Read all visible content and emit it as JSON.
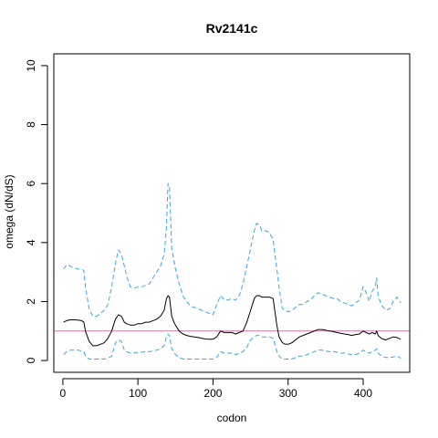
{
  "chart_data": {
    "type": "line",
    "title": "Rv2141c",
    "xlabel": "codon",
    "ylabel": "omega (dN/dS)",
    "xlim": [
      -12,
      462
    ],
    "ylim": [
      -0.4,
      10.4
    ],
    "x_ticks": [
      0,
      100,
      200,
      300,
      400
    ],
    "y_ticks": [
      0,
      2,
      4,
      6,
      8,
      10
    ],
    "x_tick_labels": [
      "0",
      "100",
      "200",
      "300",
      "400"
    ],
    "y_tick_labels": [
      "0",
      "2",
      "4",
      "6",
      "8",
      "10"
    ],
    "grid": false,
    "legend": "none",
    "reference_line": {
      "y": 1,
      "color": "#cc79a7"
    },
    "series": [
      {
        "role": "upper",
        "style": "dashed",
        "color": "#3aa6dc",
        "x": [
          1,
          5,
          10,
          15,
          20,
          25,
          28,
          30,
          35,
          40,
          45,
          50,
          55,
          60,
          65,
          70,
          74,
          78,
          82,
          85,
          90,
          95,
          100,
          105,
          110,
          115,
          120,
          125,
          130,
          135,
          138,
          140,
          142,
          145,
          148,
          150,
          155,
          160,
          165,
          170,
          175,
          180,
          185,
          190,
          195,
          200,
          205,
          210,
          215,
          220,
          225,
          230,
          235,
          240,
          245,
          250,
          255,
          258,
          262,
          265,
          270,
          275,
          280,
          285,
          288,
          292,
          295,
          300,
          305,
          310,
          315,
          320,
          325,
          330,
          335,
          340,
          345,
          350,
          355,
          360,
          365,
          370,
          375,
          380,
          385,
          390,
          395,
          400,
          404,
          408,
          412,
          416,
          418,
          420,
          424,
          430,
          435,
          440,
          445,
          450
        ],
        "values": [
          3.1,
          3.25,
          3.2,
          3.15,
          3.1,
          3.1,
          3.05,
          2.5,
          1.75,
          1.5,
          1.5,
          1.6,
          1.7,
          1.9,
          2.5,
          3.3,
          3.75,
          3.6,
          3.2,
          2.85,
          2.5,
          2.45,
          2.5,
          2.5,
          2.55,
          2.6,
          2.8,
          3.0,
          3.2,
          3.6,
          4.5,
          6.0,
          5.9,
          3.8,
          3.4,
          3.1,
          2.6,
          2.2,
          2.0,
          1.85,
          1.8,
          1.75,
          1.7,
          1.65,
          1.6,
          1.55,
          1.9,
          2.2,
          2.05,
          2.05,
          2.1,
          2.05,
          2.2,
          2.6,
          3.2,
          3.8,
          4.4,
          4.65,
          4.6,
          4.4,
          4.4,
          4.35,
          4.1,
          3.1,
          2.5,
          1.8,
          1.7,
          1.65,
          1.7,
          1.8,
          1.9,
          1.9,
          2.0,
          2.05,
          2.2,
          2.3,
          2.25,
          2.2,
          2.15,
          2.1,
          2.1,
          2.0,
          1.95,
          1.9,
          1.85,
          1.95,
          2.05,
          2.5,
          2.3,
          2.0,
          2.35,
          2.5,
          2.8,
          2.2,
          1.9,
          1.7,
          1.75,
          2.0,
          2.15,
          1.95
        ]
      },
      {
        "role": "estimate",
        "style": "solid",
        "color": "#000000",
        "x": [
          1,
          5,
          10,
          15,
          20,
          25,
          28,
          30,
          35,
          40,
          45,
          50,
          55,
          60,
          65,
          70,
          74,
          78,
          82,
          85,
          90,
          95,
          100,
          105,
          110,
          115,
          120,
          125,
          130,
          135,
          138,
          140,
          142,
          145,
          148,
          150,
          155,
          160,
          165,
          170,
          175,
          180,
          185,
          190,
          195,
          200,
          205,
          210,
          215,
          220,
          225,
          230,
          235,
          240,
          245,
          250,
          255,
          258,
          262,
          265,
          270,
          275,
          280,
          285,
          288,
          292,
          295,
          300,
          305,
          310,
          315,
          320,
          325,
          330,
          335,
          340,
          345,
          350,
          355,
          360,
          365,
          370,
          375,
          380,
          385,
          390,
          395,
          400,
          404,
          408,
          412,
          416,
          418,
          420,
          424,
          430,
          435,
          440,
          445,
          450
        ],
        "values": [
          1.3,
          1.35,
          1.38,
          1.38,
          1.37,
          1.35,
          1.3,
          1.0,
          0.65,
          0.5,
          0.5,
          0.55,
          0.6,
          0.75,
          1.0,
          1.4,
          1.55,
          1.5,
          1.3,
          1.25,
          1.2,
          1.2,
          1.25,
          1.25,
          1.3,
          1.3,
          1.35,
          1.4,
          1.5,
          1.7,
          2.1,
          2.2,
          2.15,
          1.5,
          1.3,
          1.2,
          1.0,
          0.9,
          0.85,
          0.82,
          0.8,
          0.78,
          0.75,
          0.73,
          0.72,
          0.72,
          0.8,
          1.0,
          0.95,
          0.95,
          0.95,
          0.9,
          0.95,
          1.0,
          1.3,
          1.7,
          2.1,
          2.2,
          2.2,
          2.15,
          2.15,
          2.15,
          2.1,
          1.2,
          0.8,
          0.62,
          0.56,
          0.55,
          0.6,
          0.7,
          0.8,
          0.85,
          0.9,
          0.95,
          1.0,
          1.05,
          1.05,
          1.03,
          1.0,
          0.98,
          0.95,
          0.92,
          0.9,
          0.88,
          0.85,
          0.88,
          0.9,
          1.0,
          0.95,
          0.9,
          0.95,
          0.9,
          1.0,
          0.85,
          0.75,
          0.7,
          0.75,
          0.8,
          0.78,
          0.72
        ]
      },
      {
        "role": "lower",
        "style": "dashed",
        "color": "#3aa6dc",
        "x": [
          1,
          5,
          10,
          15,
          20,
          25,
          28,
          30,
          35,
          40,
          45,
          50,
          55,
          60,
          65,
          70,
          74,
          78,
          82,
          85,
          90,
          95,
          100,
          105,
          110,
          115,
          120,
          125,
          130,
          135,
          138,
          140,
          142,
          145,
          148,
          150,
          155,
          160,
          165,
          170,
          175,
          180,
          185,
          190,
          195,
          200,
          205,
          210,
          215,
          220,
          225,
          230,
          235,
          240,
          245,
          250,
          255,
          258,
          262,
          265,
          270,
          275,
          280,
          285,
          288,
          292,
          295,
          300,
          305,
          310,
          315,
          320,
          325,
          330,
          335,
          340,
          345,
          350,
          355,
          360,
          365,
          370,
          375,
          380,
          385,
          390,
          395,
          400,
          404,
          408,
          412,
          416,
          418,
          420,
          424,
          430,
          435,
          440,
          445,
          450
        ],
        "values": [
          0.2,
          0.3,
          0.35,
          0.35,
          0.35,
          0.33,
          0.3,
          0.15,
          0.05,
          0.05,
          0.05,
          0.05,
          0.05,
          0.08,
          0.15,
          0.6,
          0.7,
          0.65,
          0.35,
          0.3,
          0.25,
          0.25,
          0.28,
          0.28,
          0.3,
          0.3,
          0.32,
          0.35,
          0.4,
          0.5,
          0.8,
          0.9,
          0.85,
          0.4,
          0.3,
          0.2,
          0.1,
          0.05,
          0.05,
          0.05,
          0.05,
          0.05,
          0.05,
          0.05,
          0.05,
          0.05,
          0.1,
          0.3,
          0.25,
          0.25,
          0.25,
          0.2,
          0.25,
          0.3,
          0.45,
          0.7,
          0.8,
          0.85,
          0.85,
          0.8,
          0.8,
          0.8,
          0.75,
          0.3,
          0.15,
          0.05,
          0.05,
          0.05,
          0.05,
          0.1,
          0.15,
          0.15,
          0.2,
          0.25,
          0.3,
          0.35,
          0.35,
          0.32,
          0.3,
          0.3,
          0.28,
          0.25,
          0.25,
          0.22,
          0.2,
          0.2,
          0.25,
          0.35,
          0.3,
          0.25,
          0.3,
          0.35,
          0.4,
          0.25,
          0.15,
          0.1,
          0.1,
          0.12,
          0.15,
          0.08
        ]
      }
    ]
  }
}
